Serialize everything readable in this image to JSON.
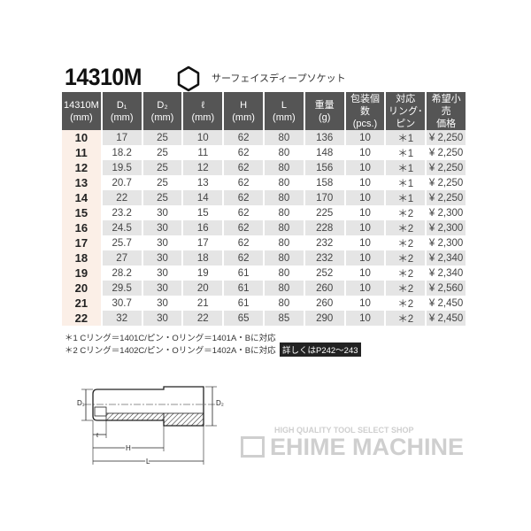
{
  "title": "14310M",
  "subtitle": "サーフェイスディープソケット",
  "icon": "hexagon-socket-icon",
  "table": {
    "headers": [
      [
        "14310M",
        "(mm)"
      ],
      [
        "D₁",
        "(mm)"
      ],
      [
        "D₂",
        "(mm)"
      ],
      [
        "ℓ",
        "(mm)"
      ],
      [
        "H",
        "(mm)"
      ],
      [
        "L",
        "(mm)"
      ],
      [
        "重量",
        "(g)"
      ],
      [
        "包装個数",
        "(pcs.)"
      ],
      [
        "対応",
        "リング･ピン"
      ],
      [
        "希望小売",
        "価格"
      ]
    ],
    "rows": [
      [
        "10",
        "17",
        "25",
        "10",
        "62",
        "80",
        "136",
        "10",
        "＊1",
        "¥ 2,250"
      ],
      [
        "11",
        "18.2",
        "25",
        "11",
        "62",
        "80",
        "148",
        "10",
        "＊1",
        "¥ 2,250"
      ],
      [
        "12",
        "19.5",
        "25",
        "12",
        "62",
        "80",
        "156",
        "10",
        "＊1",
        "¥ 2,250"
      ],
      [
        "13",
        "20.7",
        "25",
        "13",
        "62",
        "80",
        "158",
        "10",
        "＊1",
        "¥ 2,250"
      ],
      [
        "14",
        "22",
        "25",
        "14",
        "62",
        "80",
        "170",
        "10",
        "＊1",
        "¥ 2,250"
      ],
      [
        "15",
        "23.2",
        "30",
        "15",
        "62",
        "80",
        "225",
        "10",
        "＊2",
        "¥ 2,300"
      ],
      [
        "16",
        "24.5",
        "30",
        "16",
        "62",
        "80",
        "228",
        "10",
        "＊2",
        "¥ 2,300"
      ],
      [
        "17",
        "25.7",
        "30",
        "17",
        "62",
        "80",
        "232",
        "10",
        "＊2",
        "¥ 2,300"
      ],
      [
        "18",
        "27",
        "30",
        "18",
        "62",
        "80",
        "232",
        "10",
        "＊2",
        "¥ 2,340"
      ],
      [
        "19",
        "28.2",
        "30",
        "19",
        "61",
        "80",
        "252",
        "10",
        "＊2",
        "¥ 2,340"
      ],
      [
        "20",
        "29.5",
        "30",
        "20",
        "61",
        "80",
        "260",
        "10",
        "＊2",
        "¥ 2,560"
      ],
      [
        "21",
        "30.7",
        "30",
        "21",
        "61",
        "80",
        "260",
        "10",
        "＊2",
        "¥ 2,450"
      ],
      [
        "22",
        "32",
        "30",
        "22",
        "65",
        "85",
        "290",
        "10",
        "＊2",
        "¥ 2,450"
      ]
    ]
  },
  "notes": [
    "＊1 Cリング＝1401C/ピン・Oリング＝1401A・Bに対応",
    "＊2 Cリング＝1402C/ピン・Oリング＝1402A・Bに対応"
  ],
  "reference": "詳しくはP242～243",
  "diagram": {
    "d1": "D₁",
    "d2": "D₂",
    "l_small": "ℓ",
    "h": "H",
    "l": "L"
  },
  "logo": {
    "tagline": "HIGH QUALITY TOOL SELECT SHOP",
    "name": "EHIME MACHINE"
  }
}
